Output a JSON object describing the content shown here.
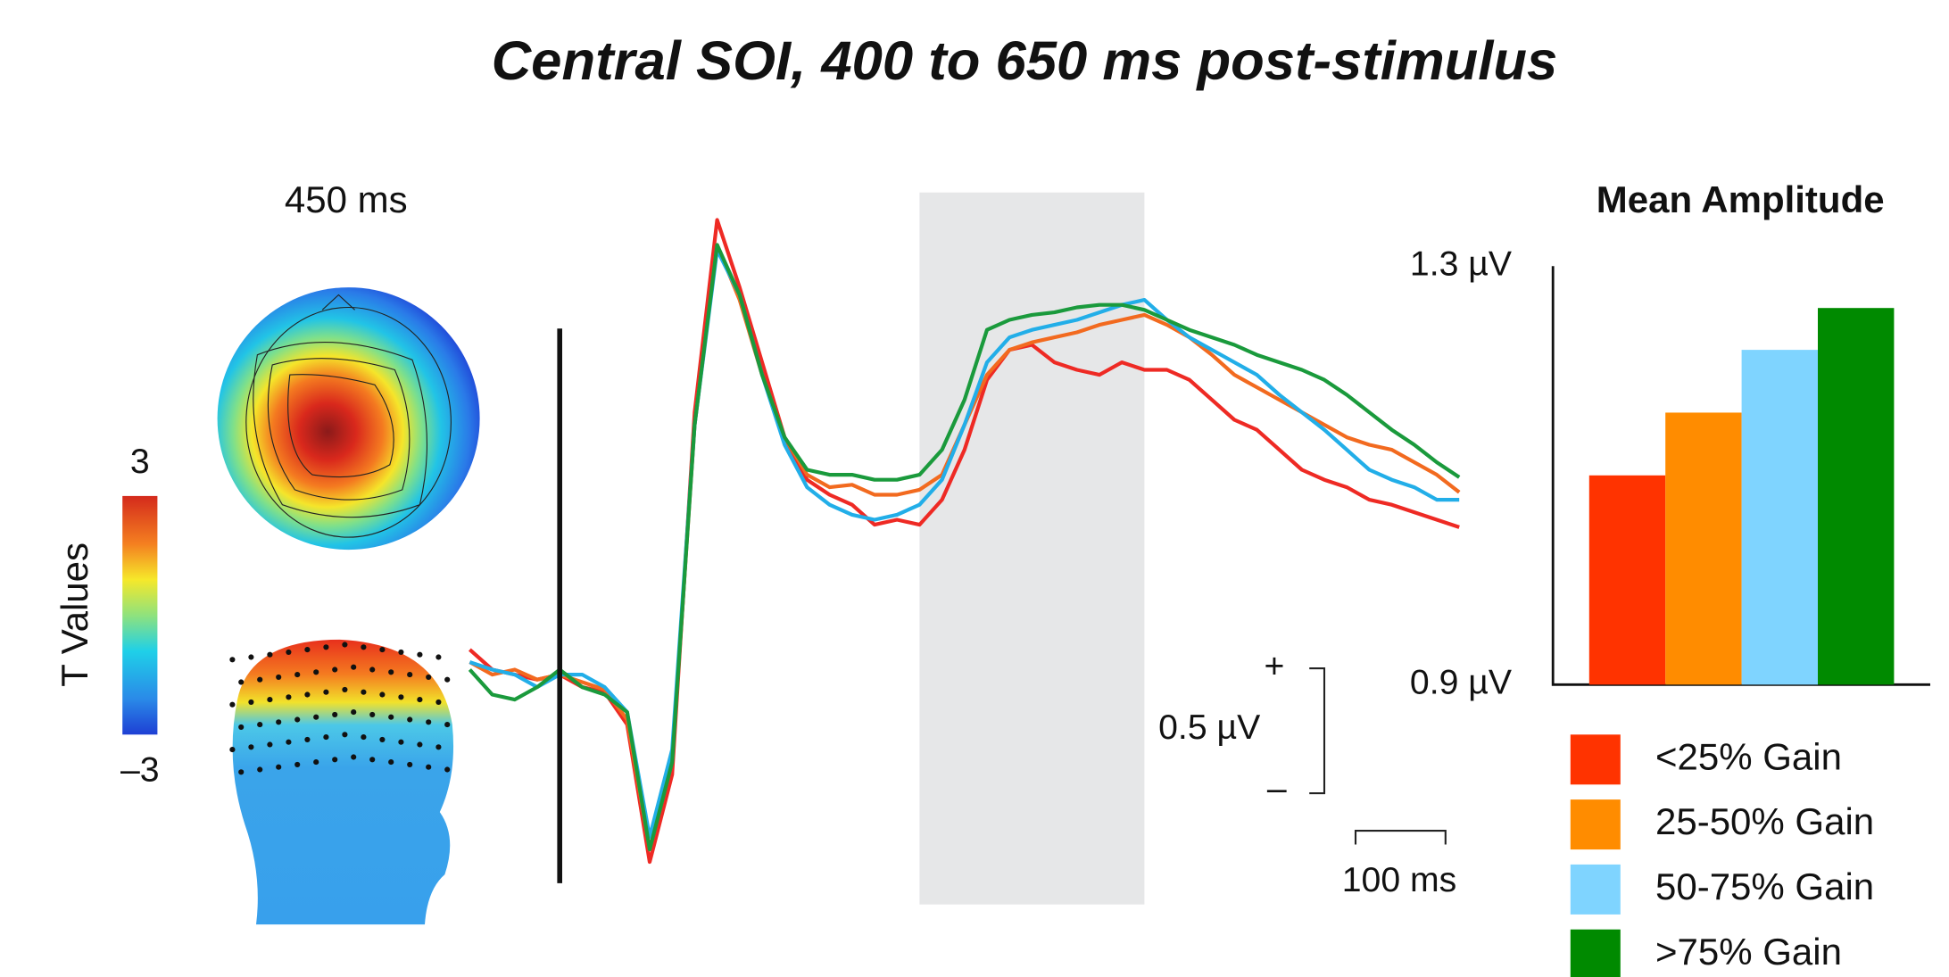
{
  "title": "Central SOI, 400 to 650 ms post-stimulus",
  "topomap": {
    "time_label": "450 ms",
    "colorbar": {
      "label": "T Values",
      "ticks": [
        3,
        {
          "value": -3,
          "label": "–3"
        }
      ]
    }
  },
  "chart_data": [
    {
      "type": "line",
      "x": [
        -100,
        -75,
        -50,
        -25,
        0,
        25,
        50,
        75,
        100,
        125,
        150,
        175,
        200,
        225,
        250,
        275,
        300,
        325,
        350,
        375,
        400,
        425,
        450,
        475,
        500,
        525,
        550,
        575,
        600,
        625,
        650,
        675,
        700,
        725,
        750,
        775,
        800,
        825,
        850,
        875,
        900,
        925,
        950,
        975,
        1000
      ],
      "highlight": [
        400,
        650
      ],
      "scale_bars": {
        "y": {
          "value": 0.5,
          "label": "0.5 µV"
        },
        "y_plus": "+",
        "y_minus": "–",
        "x": {
          "value": 100,
          "label": "100 ms"
        }
      },
      "series": [
        {
          "name": "<25% Gain",
          "color": "#ee2a24",
          "values": [
            0.1,
            0.02,
            0,
            -0.02,
            0,
            -0.05,
            -0.07,
            -0.2,
            -0.75,
            -0.4,
            1.05,
            1.82,
            1.55,
            1.25,
            0.95,
            0.78,
            0.72,
            0.68,
            0.6,
            0.62,
            0.6,
            0.7,
            0.9,
            1.18,
            1.3,
            1.32,
            1.25,
            1.22,
            1.2,
            1.25,
            1.22,
            1.22,
            1.18,
            1.1,
            1.02,
            0.98,
            0.9,
            0.82,
            0.78,
            0.75,
            0.7,
            0.68,
            0.65,
            0.62,
            0.59
          ]
        },
        {
          "name": "25-50% Gain",
          "color": "#f26a1f",
          "values": [
            0.05,
            0,
            0.02,
            -0.02,
            0,
            -0.03,
            -0.06,
            -0.18,
            -0.7,
            -0.35,
            1.0,
            1.72,
            1.5,
            1.2,
            0.95,
            0.8,
            0.75,
            0.76,
            0.72,
            0.72,
            0.74,
            0.8,
            1.0,
            1.2,
            1.3,
            1.33,
            1.35,
            1.37,
            1.4,
            1.42,
            1.44,
            1.4,
            1.35,
            1.28,
            1.2,
            1.15,
            1.1,
            1.05,
            1.0,
            0.95,
            0.92,
            0.9,
            0.85,
            0.8,
            0.73
          ]
        },
        {
          "name": "50-75% Gain",
          "color": "#22aee8",
          "values": [
            0.05,
            0.02,
            0,
            -0.05,
            0,
            0,
            -0.05,
            -0.15,
            -0.65,
            -0.3,
            1.0,
            1.7,
            1.52,
            1.2,
            0.92,
            0.75,
            0.68,
            0.64,
            0.62,
            0.64,
            0.68,
            0.78,
            1.0,
            1.25,
            1.35,
            1.38,
            1.4,
            1.42,
            1.45,
            1.48,
            1.5,
            1.42,
            1.35,
            1.3,
            1.25,
            1.2,
            1.12,
            1.05,
            0.98,
            0.9,
            0.82,
            0.78,
            0.75,
            0.7,
            0.7
          ]
        },
        {
          "name": ">75% Gain",
          "color": "#1a9a3c",
          "values": [
            0.02,
            -0.08,
            -0.1,
            -0.05,
            0.02,
            -0.05,
            -0.08,
            -0.15,
            -0.7,
            -0.35,
            1.0,
            1.72,
            1.52,
            1.2,
            0.95,
            0.82,
            0.8,
            0.8,
            0.78,
            0.78,
            0.8,
            0.9,
            1.1,
            1.38,
            1.42,
            1.44,
            1.45,
            1.47,
            1.48,
            1.48,
            1.46,
            1.42,
            1.38,
            1.35,
            1.32,
            1.28,
            1.25,
            1.22,
            1.18,
            1.12,
            1.05,
            0.98,
            0.92,
            0.85,
            0.79
          ]
        }
      ]
    },
    {
      "type": "bar",
      "title": "Mean Amplitude",
      "categories": [
        "<25% Gain",
        "25-50% Gain",
        "50-75% Gain",
        ">75% Gain"
      ],
      "values": [
        1.1,
        1.16,
        1.22,
        1.26
      ],
      "colors": [
        "#ff3300",
        "#ff8c00",
        "#7fd4ff",
        "#008a00"
      ],
      "ylim": [
        0.9,
        1.3
      ],
      "yticks": [
        {
          "value": 1.3,
          "label": "1.3 µV"
        },
        {
          "value": 0.9,
          "label": "0.9 µV"
        }
      ],
      "legend": "bottom-right"
    }
  ]
}
